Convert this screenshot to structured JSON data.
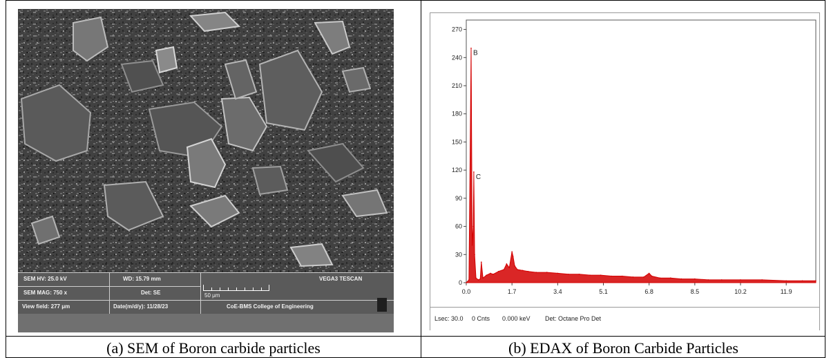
{
  "captions": {
    "a": "(a)  SEM of Boron carbide particles",
    "b": "(b)  EDAX of Boron Carbide Particles"
  },
  "sem": {
    "hv": "SEM HV: 25.0 kV",
    "wd": "WD: 15.79 mm",
    "brand": "VEGA3 TESCAN",
    "mag": "SEM MAG: 750 x",
    "det": "Det: SE",
    "scale": "50 μm",
    "view_field": "View field: 277 μm",
    "date": "Date(m/d/y): 11/28/23",
    "lab": "CoE-BMS College of Engineering"
  },
  "edax": {
    "footer": {
      "lsec": "Lsec: 30.0",
      "counts": "0 Cnts",
      "energy": "0.000 keV",
      "detector": "Det: Octane Pro Det"
    }
  },
  "chart_data": {
    "type": "line",
    "title": "",
    "xlabel": "",
    "ylabel": "",
    "xlim": [
      0.0,
      13.0
    ],
    "ylim": [
      0,
      280
    ],
    "x_ticks": [
      "0.0",
      "1.7",
      "3.4",
      "5.1",
      "6.8",
      "8.5",
      "10.2",
      "11.9"
    ],
    "y_ticks": [
      "0",
      "30",
      "60",
      "90",
      "120",
      "150",
      "180",
      "210",
      "240",
      "270"
    ],
    "annotations": [
      {
        "label": "B",
        "x": 0.18,
        "y": 250
      },
      {
        "label": "C",
        "x": 0.28,
        "y": 118
      }
    ],
    "series": [
      {
        "color": "#d40000",
        "x": [
          0.0,
          0.1,
          0.18,
          0.22,
          0.26,
          0.28,
          0.31,
          0.36,
          0.45,
          0.52,
          0.56,
          0.62,
          0.75,
          0.9,
          1.0,
          1.2,
          1.4,
          1.5,
          1.6,
          1.7,
          1.74,
          1.8,
          1.9,
          2.1,
          2.3,
          2.6,
          3.0,
          3.4,
          3.8,
          4.2,
          4.6,
          5.0,
          5.4,
          5.8,
          6.2,
          6.6,
          6.8,
          6.9,
          7.2,
          7.6,
          8.0,
          8.5,
          9.0,
          9.5,
          10.2,
          11.0,
          11.9,
          12.5,
          13.0
        ],
        "y": [
          0,
          3,
          250,
          40,
          60,
          118,
          30,
          5,
          3,
          4,
          22,
          5,
          8,
          10,
          9,
          12,
          14,
          20,
          16,
          33,
          28,
          18,
          14,
          13,
          12,
          11,
          11,
          10,
          9,
          9,
          8,
          8,
          7,
          7,
          6,
          6,
          10,
          7,
          5,
          5,
          4,
          4,
          3,
          3,
          3,
          3,
          2,
          2,
          2
        ]
      }
    ]
  }
}
